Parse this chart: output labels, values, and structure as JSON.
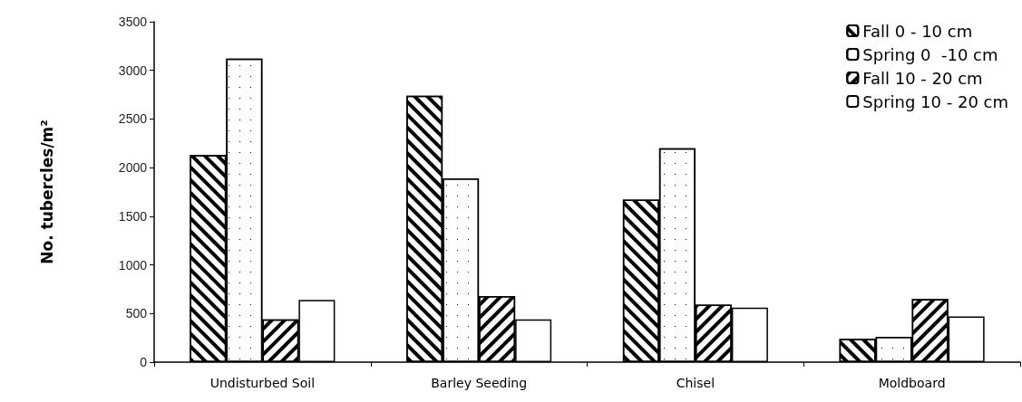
{
  "chart_data": {
    "type": "bar",
    "ylabel": "No. tubercles/m²",
    "categories": [
      "Undisturbed Soil",
      "Barley Seeding",
      "Chisel",
      "Moldboard"
    ],
    "series": [
      {
        "name": "Fall 0 - 10 cm",
        "color": "#ffffff",
        "values": [
          2130,
          2740,
          1670,
          240
        ]
      },
      {
        "name": "Spring 0  -10 cm",
        "color": "#ffffff",
        "values": [
          3120,
          1890,
          2200,
          260
        ]
      },
      {
        "name": "Fall 10 - 20 cm",
        "color": "#ffffff",
        "values": [
          440,
          680,
          590,
          650
        ]
      },
      {
        "name": "Spring 10 - 20 cm",
        "color": "#ffffff",
        "values": [
          640,
          440,
          560,
          470
        ]
      }
    ],
    "ylim": [
      0,
      3500
    ],
    "yticks": [
      0,
      500,
      1000,
      1500,
      2000,
      2500,
      3000,
      3500
    ],
    "grid": false,
    "legend": "top right"
  }
}
